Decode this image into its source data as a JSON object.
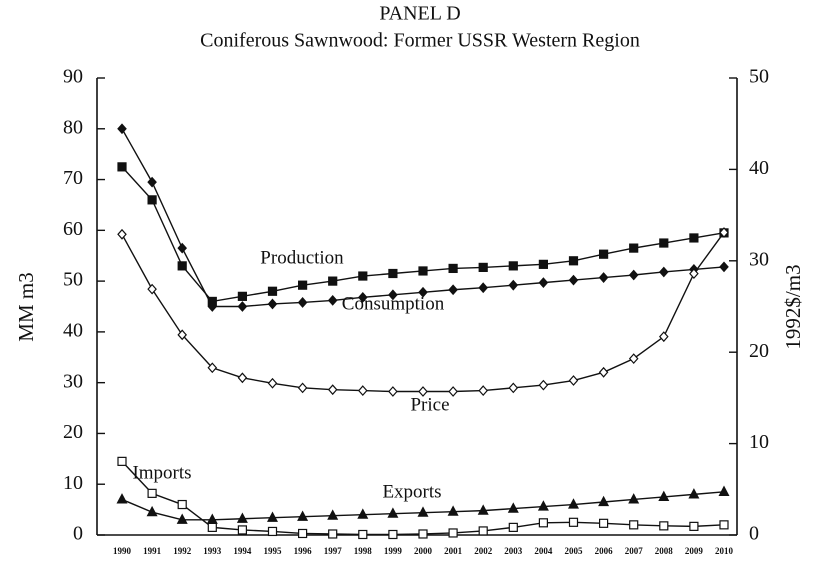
{
  "chart_data": {
    "type": "line",
    "title": "PANEL D",
    "subtitle": "Coniferous Sawnwood:  Former USSR Western Region",
    "y_label": "MM m3",
    "y2_label": "1992$/m3",
    "categories": [
      "1990",
      "1991",
      "1992",
      "1993",
      "1994",
      "1995",
      "1996",
      "1997",
      "1998",
      "1999",
      "2000",
      "2001",
      "2002",
      "2003",
      "2004",
      "2005",
      "2006",
      "2007",
      "2008",
      "2009",
      "2010"
    ],
    "ylim": [
      0,
      90
    ],
    "yticks": [
      0,
      10,
      20,
      30,
      40,
      50,
      60,
      70,
      80,
      90
    ],
    "y2lim": [
      0,
      50
    ],
    "y2ticks": [
      0,
      10,
      20,
      30,
      40,
      50
    ],
    "series": [
      {
        "name": "Production",
        "color": "#111111",
        "marker": "square-filled",
        "values": [
          72.5,
          66,
          53,
          46,
          47,
          48,
          49.2,
          50,
          51,
          51.5,
          52,
          52.5,
          52.7,
          53,
          53.3,
          54,
          55.3,
          56.5,
          57.5,
          58.5,
          59.5
        ]
      },
      {
        "name": "Consumption",
        "color": "#111111",
        "marker": "diamond-filled",
        "values": [
          80,
          69.5,
          56.5,
          45,
          45,
          45.5,
          45.8,
          46.2,
          46.8,
          47.3,
          47.8,
          48.3,
          48.7,
          49.2,
          49.7,
          50.2,
          50.7,
          51.2,
          51.8,
          52.3,
          52.8
        ]
      },
      {
        "name": "Price",
        "color": "#111111",
        "marker": "diamond-open",
        "axis": "y2",
        "values": [
          32.9,
          26.9,
          21.9,
          18.3,
          17.2,
          16.6,
          16.1,
          15.9,
          15.8,
          15.7,
          15.7,
          15.7,
          15.8,
          16.1,
          16.4,
          16.9,
          17.8,
          19.3,
          21.7,
          28.6,
          33.1
        ]
      },
      {
        "name": "Imports",
        "color": "#111111",
        "marker": "square-open",
        "values": [
          14.5,
          8.2,
          6,
          1.5,
          1,
          0.7,
          0.3,
          0.2,
          0.1,
          0.1,
          0.2,
          0.4,
          0.8,
          1.5,
          2.4,
          2.5,
          2.3,
          2,
          1.8,
          1.7,
          2
        ]
      },
      {
        "name": "Exports",
        "color": "#111111",
        "marker": "triangle-filled",
        "values": [
          7,
          4.5,
          3,
          3,
          3.2,
          3.4,
          3.6,
          3.8,
          4,
          4.2,
          4.4,
          4.6,
          4.8,
          5.2,
          5.6,
          6,
          6.5,
          7,
          7.5,
          8,
          8.5
        ]
      }
    ]
  }
}
